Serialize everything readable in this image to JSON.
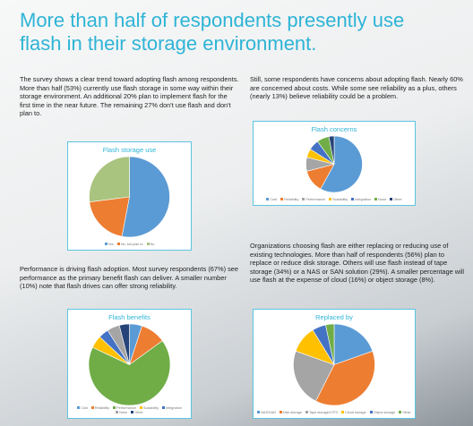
{
  "title": "More than half of respondents presently use flash in their storage environment.",
  "paragraphs": [
    "The survey shows a clear trend toward adopting flash among respondents. More than half (53%) currently use flash storage in some way within their storage environment. An additional 20% plan to implement flash for the first time in the near future. The remaining 27% don't use flash and don't plan to.",
    "Still, some respondents have concerns about adopting flash. Nearly 60% are concerned about costs. While some see reliability as a plus, others (nearly 13%) believe reliability could be a problem.",
    "Performance is driving flash adoption. Most survey respondents (67%) see performance as the primary benefit flash can deliver. A smaller number (10%) note that flash drives can offer strong reliability.",
    "Organizations choosing flash are either replacing or reducing use of existing technologies. More than half of respondents (56%) plan to replace or reduce disk storage. Others will use flash instead of tape storage (34%) or a NAS or SAN solution (29%). A smaller percentage will use flash at the expense of cloud (16%) or object storage (8%)."
  ],
  "chart_data": [
    {
      "type": "pie",
      "title": "Flash storage use",
      "categories": [
        "Yes",
        "No, but plan to",
        "No"
      ],
      "values": [
        53,
        20,
        27
      ],
      "colors": [
        "#5b9bd5",
        "#ed7d31",
        "#a9c47f"
      ]
    },
    {
      "type": "pie",
      "title": "Flash concerns",
      "categories": [
        "Cost",
        "Reliability",
        "Performance",
        "Scalability",
        "Integration",
        "None",
        "Other"
      ],
      "values": [
        58,
        13,
        8,
        5,
        6,
        7,
        3
      ],
      "colors": [
        "#5b9bd5",
        "#ed7d31",
        "#a5a5a5",
        "#ffc000",
        "#4472c4",
        "#70ad47",
        "#264478"
      ]
    },
    {
      "type": "pie",
      "title": "Flash benefits",
      "categories": [
        "Cost",
        "Reliability",
        "Performance",
        "Scalability",
        "Integration",
        "None",
        "Other"
      ],
      "values": [
        5,
        10,
        67,
        5,
        4,
        5,
        4
      ],
      "colors": [
        "#5b9bd5",
        "#ed7d31",
        "#70ad47",
        "#ffc000",
        "#4472c4",
        "#a5a5a5",
        "#264478"
      ]
    },
    {
      "type": "pie",
      "title": "Replaced by",
      "categories": [
        "NAS/SAN",
        "Disk storage",
        "Tape storage/LTFS",
        "Cloud storage",
        "Object storage",
        "Other"
      ],
      "values": [
        29,
        56,
        34,
        16,
        8,
        5
      ],
      "colors": [
        "#5b9bd5",
        "#ed7d31",
        "#a5a5a5",
        "#ffc000",
        "#4472c4",
        "#70ad47"
      ]
    }
  ]
}
